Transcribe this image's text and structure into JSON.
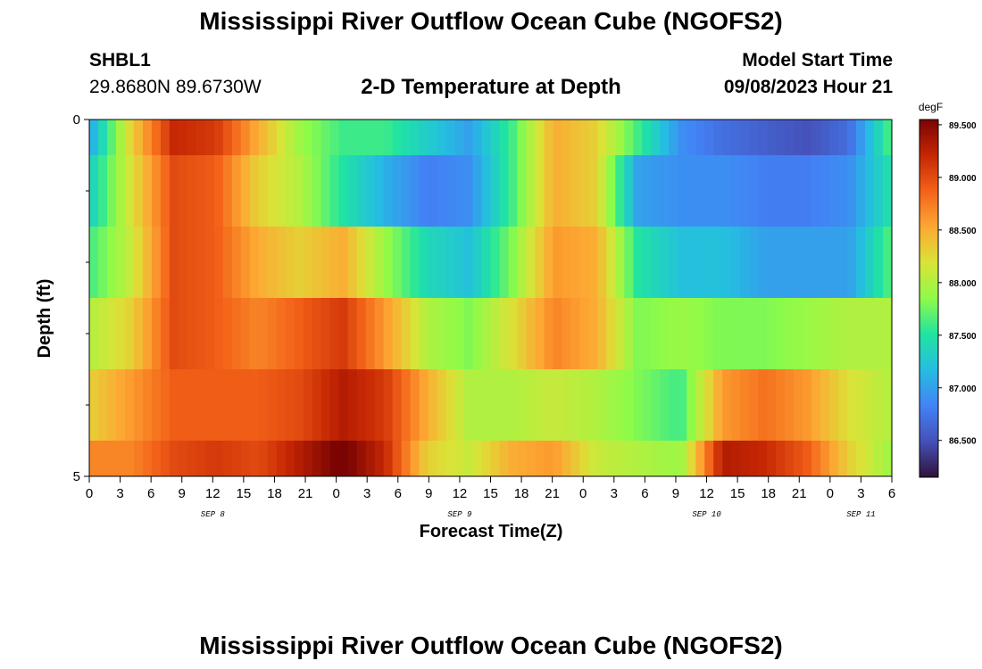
{
  "header": {
    "title": "Mississippi River Outflow Ocean Cube (NGOFS2)",
    "station": "SHBL1",
    "coords": "29.8680N  89.6730W",
    "subtitle": "2-D Temperature at Depth",
    "start_label": "Model Start Time",
    "start_value": "09/08/2023 Hour 21"
  },
  "footer": {
    "title": "Mississippi River Outflow Ocean Cube (NGOFS2)"
  },
  "chart_data": {
    "type": "heatmap",
    "title": "2-D Temperature at Depth",
    "xlabel": "Forecast Time(Z)",
    "ylabel": "Depth (ft)",
    "x_hours": [
      0,
      3,
      6,
      9,
      12,
      15,
      18,
      21,
      24,
      27,
      30,
      33,
      36,
      39,
      42,
      45,
      48,
      51,
      54,
      57,
      60,
      63,
      66,
      69,
      72,
      75,
      78
    ],
    "xlim": [
      0,
      78
    ],
    "x_tick_labels": [
      "0",
      "3",
      "6",
      "9",
      "12",
      "15",
      "18",
      "21",
      "0",
      "3",
      "6",
      "9",
      "12",
      "15",
      "18",
      "21",
      "0",
      "3",
      "6",
      "9",
      "12",
      "15",
      "18",
      "21",
      "0",
      "3",
      "6"
    ],
    "date_labels": [
      {
        "label": "SEP 8",
        "hour": 12
      },
      {
        "label": "SEP 9",
        "hour": 36
      },
      {
        "label": "SEP 10",
        "hour": 60
      },
      {
        "label": "SEP 11",
        "hour": 75
      }
    ],
    "ylim": [
      0,
      5
    ],
    "y_tick_labels": [
      {
        "depth": 0,
        "label": "0"
      },
      {
        "depth": 5,
        "label": "5"
      }
    ],
    "y_minor_ticks": [
      1,
      2,
      3,
      4
    ],
    "depth_layers": [
      {
        "depth_range": [
          0,
          0.5
        ],
        "values": [
          87.0,
          88.3,
          89.2,
          89.1,
          88.5,
          87.9,
          87.6,
          87.6,
          87.3,
          87.0,
          87.6,
          88.5,
          88.3,
          87.6,
          86.9,
          86.7,
          86.6,
          86.5,
          86.7,
          87.7
        ]
      },
      {
        "depth_range": [
          0.5,
          1.5
        ],
        "values": [
          87.3,
          88.2,
          89.0,
          88.9,
          88.3,
          88.0,
          87.5,
          87.1,
          86.8,
          86.9,
          87.6,
          88.5,
          88.3,
          87.0,
          86.9,
          86.9,
          86.8,
          86.8,
          86.9,
          87.5
        ]
      },
      {
        "depth_range": [
          1.5,
          2.5
        ],
        "values": [
          87.6,
          88.1,
          89.0,
          88.9,
          88.5,
          88.3,
          88.5,
          87.9,
          87.4,
          87.2,
          87.8,
          88.6,
          88.5,
          87.5,
          87.2,
          87.2,
          87.0,
          87.0,
          87.0,
          87.7
        ]
      },
      {
        "depth_range": [
          2.5,
          3.5
        ],
        "values": [
          88.0,
          88.3,
          89.0,
          88.9,
          88.7,
          88.9,
          89.1,
          88.6,
          88.0,
          87.8,
          88.2,
          88.7,
          88.5,
          87.8,
          87.9,
          87.8,
          87.8,
          87.9,
          88.0,
          88.0
        ]
      },
      {
        "depth_range": [
          3.5,
          4.5
        ],
        "values": [
          88.3,
          88.6,
          88.9,
          88.9,
          88.9,
          89.0,
          89.3,
          89.1,
          88.5,
          88.0,
          88.0,
          88.1,
          88.0,
          87.8,
          87.6,
          88.6,
          88.8,
          88.6,
          88.2,
          88.0
        ]
      },
      {
        "depth_range": [
          4.5,
          5.0
        ],
        "values": [
          88.7,
          88.7,
          89.0,
          89.1,
          89.0,
          89.3,
          89.6,
          89.2,
          88.3,
          88.1,
          88.5,
          88.6,
          88.1,
          88.0,
          87.9,
          89.3,
          89.2,
          88.9,
          88.3,
          87.9
        ]
      }
    ],
    "colorbar": {
      "unit": "degF",
      "range": [
        86.15,
        89.55
      ],
      "tick_values": [
        86.5,
        87.0,
        87.5,
        88.0,
        88.5,
        89.0,
        89.5
      ],
      "tick_labels": [
        "86.500",
        "87.000",
        "87.500",
        "88.000",
        "88.500",
        "89.000",
        "89.500"
      ]
    }
  }
}
